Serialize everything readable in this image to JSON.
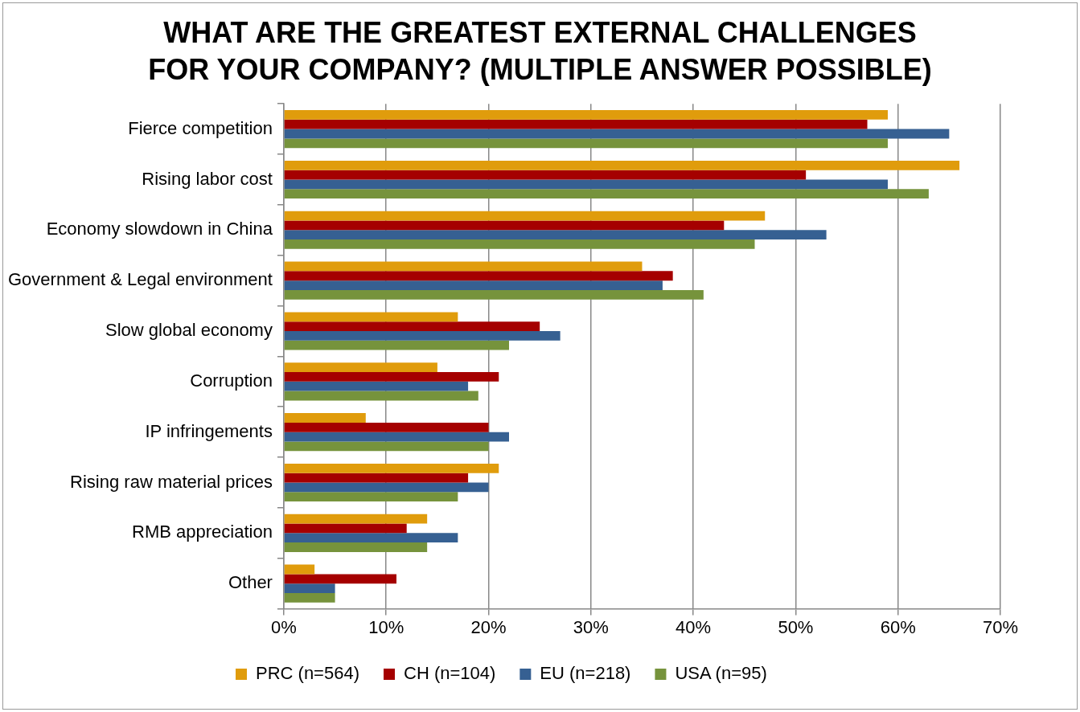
{
  "chart_data": {
    "type": "bar",
    "orientation": "horizontal",
    "title": "WHAT ARE THE GREATEST EXTERNAL CHALLENGES FOR YOUR COMPANY? (MULTIPLE ANSWER POSSIBLE)",
    "categories": [
      "Fierce competition",
      "Rising labor cost",
      "Economy slowdown in China",
      "Government & Legal environment",
      "Slow global economy",
      "Corruption",
      "IP infringements",
      "Rising raw material prices",
      "RMB appreciation",
      "Other"
    ],
    "series": [
      {
        "name": "PRC (n=564)",
        "color": "#e09c0c",
        "values": [
          59,
          66,
          47,
          35,
          17,
          15,
          8,
          21,
          14,
          3
        ]
      },
      {
        "name": "CH (n=104)",
        "color": "#a50000",
        "values": [
          57,
          51,
          43,
          38,
          25,
          21,
          20,
          18,
          12,
          11
        ]
      },
      {
        "name": "EU (n=218)",
        "color": "#366092",
        "values": [
          65,
          59,
          53,
          37,
          27,
          18,
          22,
          20,
          17,
          5
        ]
      },
      {
        "name": "USA (n=95)",
        "color": "#76933c",
        "values": [
          59,
          63,
          46,
          41,
          22,
          19,
          20,
          17,
          14,
          5
        ]
      }
    ],
    "xlim": [
      0,
      70
    ],
    "xticks": [
      {
        "value": 0,
        "label": "0%"
      },
      {
        "value": 10,
        "label": "10%"
      },
      {
        "value": 20,
        "label": "20%"
      },
      {
        "value": 30,
        "label": "30%"
      },
      {
        "value": 40,
        "label": "40%"
      },
      {
        "value": 50,
        "label": "50%"
      },
      {
        "value": 60,
        "label": "60%"
      },
      {
        "value": 70,
        "label": "70%"
      }
    ],
    "grid": "x",
    "legend": "bottom"
  }
}
